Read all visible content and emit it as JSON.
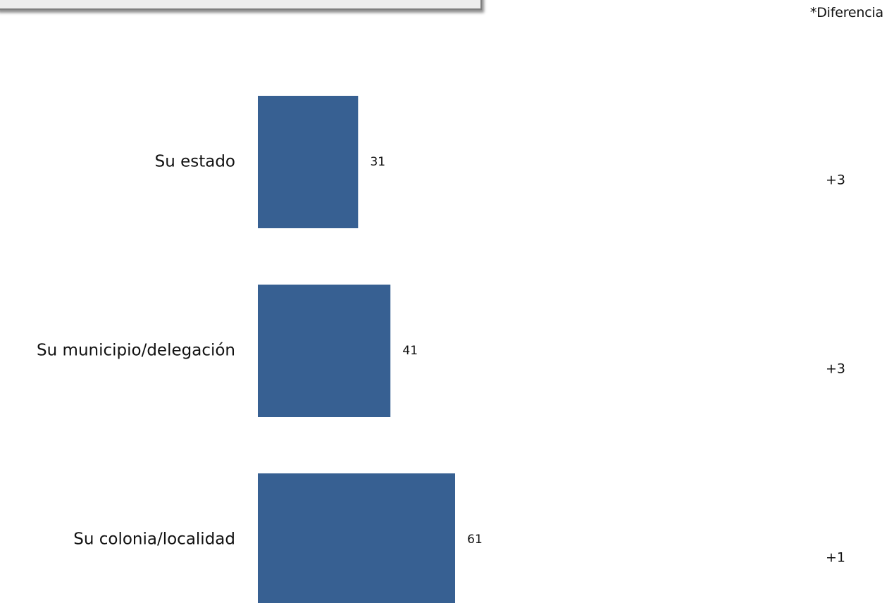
{
  "header": {
    "diff_title": "*Diferencia"
  },
  "colors": {
    "bar": "#376092"
  },
  "chart_data": {
    "type": "bar",
    "orientation": "horizontal",
    "categories": [
      "Su estado",
      "Su municipio/delegación",
      "Su colonia/localidad"
    ],
    "values": [
      31,
      41,
      61
    ],
    "differences": [
      "+3",
      "+3",
      "+1"
    ],
    "title": "",
    "xlabel": "",
    "ylabel": "",
    "xlim": [
      0,
      61
    ],
    "grid": false
  }
}
